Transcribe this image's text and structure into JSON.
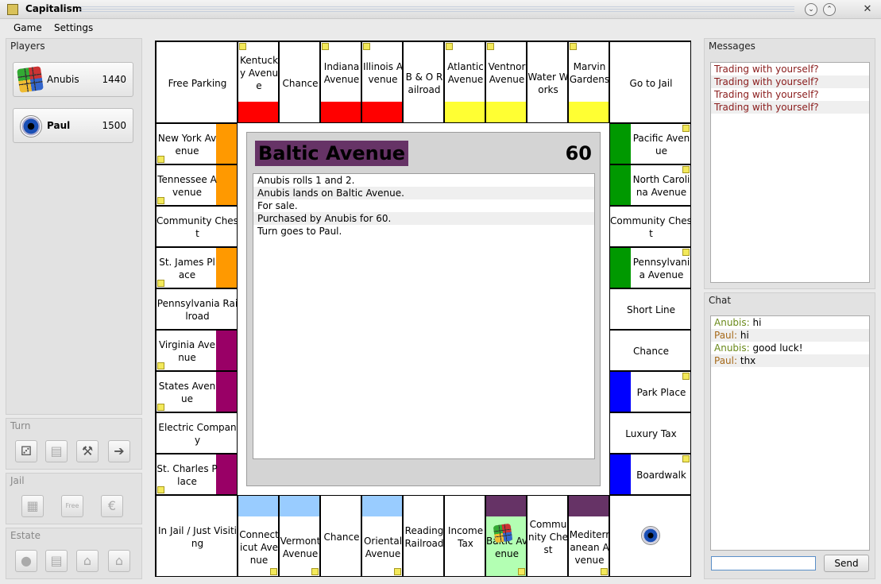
{
  "window": {
    "title": "Capitalism"
  },
  "menu": [
    "Game",
    "Settings"
  ],
  "players_panel": {
    "title": "Players",
    "players": [
      {
        "name": "Anubis",
        "money": "1440",
        "icon": "rubiks-cube-icon"
      },
      {
        "name": "Paul",
        "money": "1500",
        "icon": "eye-icon"
      }
    ]
  },
  "turn_panel": {
    "title": "Turn",
    "buttons": [
      "dice-icon",
      "deed-icon",
      "auction-hammer-icon",
      "end-turn-arrow-icon"
    ]
  },
  "jail_panel": {
    "title": "Jail",
    "buttons": [
      "jail-bars-icon",
      "free-card-icon",
      "euro-icon"
    ],
    "free_label": "Free"
  },
  "estate_panel": {
    "title": "Estate",
    "buttons": [
      "mortgage-icon",
      "deed-icon",
      "buy-house-icon",
      "sell-house-icon"
    ]
  },
  "colors": {
    "red": "#ff0000",
    "yellow": "#ffff33",
    "green": "#009900",
    "blue": "#0000ff",
    "orange": "#ff9900",
    "magenta": "#990066",
    "lightblue": "#99ccff",
    "purple": "#663366",
    "highlight": "#b3ffb3"
  },
  "board": {
    "corners": {
      "free_parking": "Free Parking",
      "go_to_jail": "Go to Jail",
      "jail": "In Jail / Just Visiting"
    },
    "top": [
      {
        "name": "Kentucky Avenue",
        "color": "#ff0000"
      },
      {
        "name": "Chance",
        "color": null
      },
      {
        "name": "Indiana Avenue",
        "color": "#ff0000"
      },
      {
        "name": "Illinois Avenue",
        "color": "#ff0000"
      },
      {
        "name": "B & O Railroad",
        "color": null
      },
      {
        "name": "Atlantic Avenue",
        "color": "#ffff33"
      },
      {
        "name": "Ventnor Avenue",
        "color": "#ffff33"
      },
      {
        "name": "Water Works",
        "color": null
      },
      {
        "name": "Marvin Gardens",
        "color": "#ffff33"
      }
    ],
    "left": [
      {
        "name": "New York Avenue",
        "color": "#ff9900"
      },
      {
        "name": "Tennessee Avenue",
        "color": "#ff9900"
      },
      {
        "name": "Community Chest",
        "color": null
      },
      {
        "name": "St. James Place",
        "color": "#ff9900"
      },
      {
        "name": "Pennsylvania Railroad",
        "color": null
      },
      {
        "name": "Virginia Avenue",
        "color": "#990066"
      },
      {
        "name": "States Avenue",
        "color": "#990066"
      },
      {
        "name": "Electric Company",
        "color": null
      },
      {
        "name": "St. Charles Place",
        "color": "#990066"
      }
    ],
    "right": [
      {
        "name": "Pacific Avenue",
        "color": "#009900"
      },
      {
        "name": "North Carolina Avenue",
        "color": "#009900"
      },
      {
        "name": "Community Chest",
        "color": null
      },
      {
        "name": "Pennsylvania Avenue",
        "color": "#009900"
      },
      {
        "name": "Short Line",
        "color": null
      },
      {
        "name": "Chance",
        "color": null
      },
      {
        "name": "Park Place",
        "color": "#0000ff"
      },
      {
        "name": "Luxury Tax",
        "color": null
      },
      {
        "name": "Boardwalk",
        "color": "#0000ff"
      }
    ],
    "bottom": [
      {
        "name": "Connecticut Avenue",
        "color": "#99ccff"
      },
      {
        "name": "Vermont Avenue",
        "color": "#99ccff"
      },
      {
        "name": "Chance",
        "color": null
      },
      {
        "name": "Oriental Avenue",
        "color": "#99ccff"
      },
      {
        "name": "Reading Railroad",
        "color": null
      },
      {
        "name": "Income Tax",
        "color": null
      },
      {
        "name": "Baltic Avenue",
        "color": "#663366"
      },
      {
        "name": "Community Chest",
        "color": null
      },
      {
        "name": "Mediterranean Avenue",
        "color": "#663366"
      }
    ]
  },
  "center": {
    "estate_name": "Baltic Avenue",
    "estate_color": "#663366",
    "price": "60",
    "log": [
      "Anubis rolls 1 and 2.",
      "Anubis lands on Baltic Avenue.",
      "For sale.",
      "Purchased by Anubis for 60.",
      "Turn goes to Paul."
    ]
  },
  "messages_panel": {
    "title": "Messages",
    "lines": [
      "Trading with yourself?",
      "Trading with yourself?",
      "Trading with yourself?",
      "Trading with yourself?"
    ]
  },
  "chat_panel": {
    "title": "Chat",
    "lines": [
      {
        "author": "Anubis:",
        "text": " hi"
      },
      {
        "author": "Paul:",
        "text": " hi"
      },
      {
        "author": "Anubis:",
        "text": " good luck!"
      },
      {
        "author": "Paul:",
        "text": " thx"
      }
    ],
    "input_value": "",
    "send_label": "Send"
  }
}
